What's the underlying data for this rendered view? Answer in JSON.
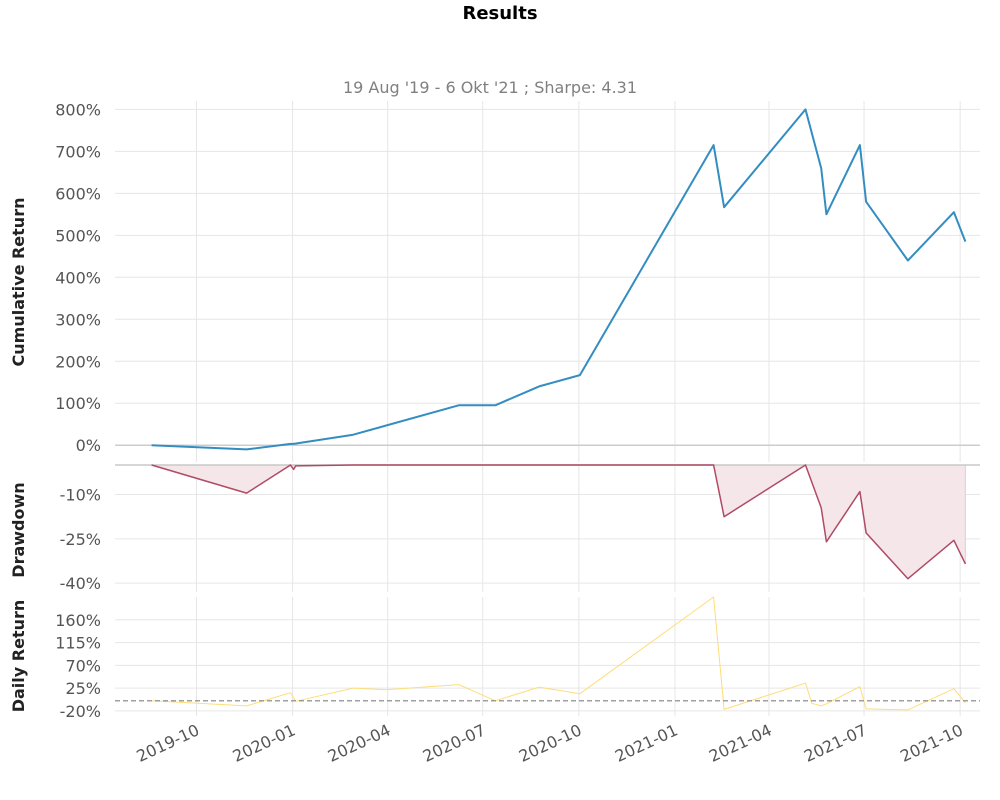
{
  "title": "Results",
  "subtitle": "19 Aug '19 -  6 Okt '21 ;  Sharpe: 4.31",
  "colors": {
    "cumulative": "#348dc1",
    "drawdown_line": "#af4b64",
    "drawdown_fill": "#f5e6ea",
    "daily": "#fedd78",
    "zero_line": "#cccccc",
    "dashed": "#808080"
  },
  "chart_data": [
    {
      "type": "line",
      "panel": "cumulative",
      "ylabel": "Cumulative Return",
      "ylim": [
        -40,
        820
      ],
      "yticks": [
        0,
        100,
        200,
        300,
        400,
        500,
        600,
        700,
        800
      ],
      "ytick_labels": [
        "0%",
        "100%",
        "200%",
        "300%",
        "400%",
        "500%",
        "600%",
        "700%",
        "800%"
      ],
      "grid": true,
      "x": [
        "2019-08-19",
        "2019-11-18",
        "2019-12-30",
        "2020-01-02",
        "2020-02-28",
        "2020-06-08",
        "2020-07-13",
        "2020-08-24",
        "2020-10-02",
        "2021-02-07",
        "2021-02-17",
        "2021-05-06",
        "2021-05-21",
        "2021-05-26",
        "2021-06-27",
        "2021-07-03",
        "2021-08-12",
        "2021-09-25",
        "2021-10-06"
      ],
      "values": [
        0,
        -10,
        3,
        3,
        25,
        95,
        95,
        140,
        167,
        715,
        567,
        800,
        660,
        550,
        715,
        580,
        440,
        555,
        485
      ]
    },
    {
      "type": "area",
      "panel": "drawdown",
      "ylabel": "Drawdown",
      "ylim": [
        -43,
        0
      ],
      "yticks": [
        -10,
        -25,
        -40
      ],
      "ytick_labels": [
        "-10%",
        "-25%",
        "-40%"
      ],
      "grid": true,
      "x": [
        "2019-08-19",
        "2019-11-18",
        "2019-12-30",
        "2020-01-02",
        "2020-01-04",
        "2020-02-28",
        "2021-02-07",
        "2021-02-17",
        "2021-05-06",
        "2021-05-21",
        "2021-05-26",
        "2021-06-27",
        "2021-07-03",
        "2021-08-12",
        "2021-09-25",
        "2021-10-06"
      ],
      "values": [
        0,
        -9.5,
        0,
        -1.5,
        -0.3,
        0,
        0,
        -17.5,
        0,
        -14.5,
        -26,
        -9,
        -23,
        -38.5,
        -25.5,
        -33.5
      ]
    },
    {
      "type": "line",
      "panel": "daily",
      "ylabel": "Daily Return",
      "ylim": [
        -30,
        205
      ],
      "yticks": [
        -20,
        25,
        70,
        115,
        160
      ],
      "ytick_labels": [
        "-20%",
        "25%",
        "70%",
        "115%",
        "160%"
      ],
      "grid": true,
      "x": [
        "2019-08-19",
        "2019-11-18",
        "2019-12-30",
        "2020-01-04",
        "2020-02-28",
        "2020-03-30",
        "2020-06-08",
        "2020-07-13",
        "2020-08-24",
        "2020-10-02",
        "2021-02-07",
        "2021-02-17",
        "2021-05-06",
        "2021-05-12",
        "2021-05-21",
        "2021-05-26",
        "2021-06-27",
        "2021-07-03",
        "2021-08-12",
        "2021-09-25",
        "2021-10-06"
      ],
      "values": [
        0,
        -10,
        16,
        -1,
        25,
        22,
        32,
        0,
        27,
        14,
        205,
        -17,
        35,
        -5,
        -10,
        -6,
        28,
        -16,
        -18,
        24,
        -4
      ]
    }
  ],
  "x_axis": {
    "ticks": [
      "2019-10-01",
      "2020-01-01",
      "2020-04-01",
      "2020-07-01",
      "2020-10-01",
      "2021-01-01",
      "2021-04-01",
      "2021-07-01",
      "2021-10-01"
    ],
    "labels": [
      "2019-10",
      "2020-01",
      "2020-04",
      "2020-07",
      "2020-10",
      "2021-01",
      "2021-04",
      "2021-07",
      "2021-10"
    ]
  }
}
